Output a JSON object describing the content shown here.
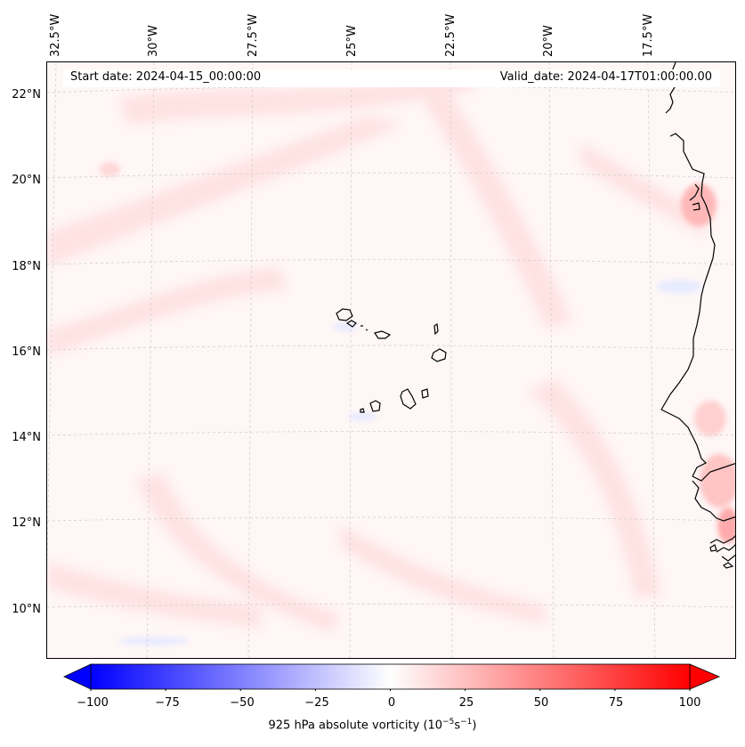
{
  "map": {
    "start_date": "Start date: 2024-04-15_00:00:00",
    "valid_date": "Valid_date: 2024-04-17T01:00:00.00",
    "lon_labels": [
      "32.5°W",
      "30°W",
      "27.5°W",
      "25°W",
      "22.5°W",
      "20°W",
      "17.5°W"
    ],
    "lat_labels": [
      "22°N",
      "20°N",
      "18°N",
      "16°N",
      "14°N",
      "12°N",
      "10°N"
    ],
    "features": [
      "Cape Verde islands",
      "West African coastline"
    ]
  },
  "colorbar": {
    "label_main": "925 hPa absolute vorticity (10",
    "exp1": "−5",
    "label_mid": "s",
    "exp2": "−1",
    "label_end": ")",
    "ticks": [
      "−100",
      "−75",
      "−50",
      "−25",
      "0",
      "25",
      "50",
      "75",
      "100"
    ],
    "vmin": -100,
    "vmax": 100,
    "colors": {
      "min": "#0000ff",
      "mid": "#ffffff",
      "max": "#ff0000"
    }
  }
}
